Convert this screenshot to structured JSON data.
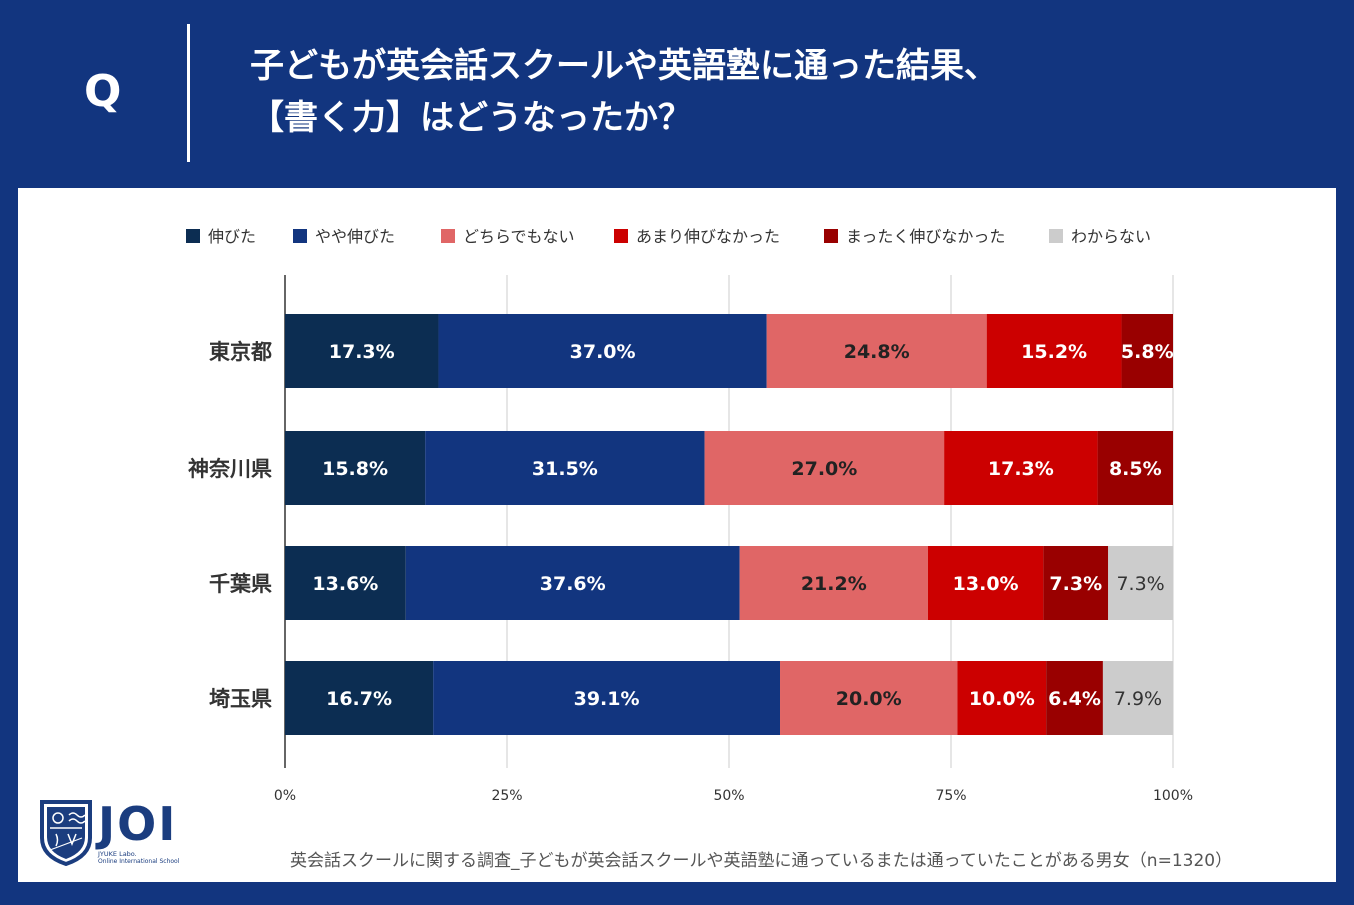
{
  "header": {
    "q_label": "Q",
    "question": "子どもが英会話スクールや英語塾に通った結果、\n【書く力】はどうなったか？"
  },
  "colors": {
    "background": "#12357f",
    "series": [
      "#0c2d52",
      "#12357f",
      "#e06666",
      "#cc0000",
      "#990000",
      "#cccccc"
    ]
  },
  "chart_data": {
    "type": "bar",
    "orientation": "horizontal-stacked-100",
    "categories": [
      "東京都",
      "神奈川県",
      "千葉県",
      "埼玉県"
    ],
    "series": [
      {
        "name": "伸びた",
        "values": [
          17.3,
          15.8,
          13.6,
          16.7
        ],
        "labels": [
          "17.3%",
          "15.8%",
          "13.6%",
          "16.7%"
        ]
      },
      {
        "name": "やや伸びた",
        "values": [
          37.0,
          31.5,
          37.6,
          39.1
        ],
        "labels": [
          "37.0%",
          "31.5%",
          "37.6%",
          "39.1%"
        ]
      },
      {
        "name": "どちらでもない",
        "values": [
          24.8,
          27.0,
          21.2,
          20.0
        ],
        "labels": [
          "24.8%",
          "27.0%",
          "21.2%",
          "20.0%"
        ]
      },
      {
        "name": "あまり伸びなかった",
        "values": [
          15.2,
          17.3,
          13.0,
          10.0
        ],
        "labels": [
          "15.2%",
          "17.3%",
          "13.0%",
          "10.0%"
        ]
      },
      {
        "name": "まったく伸びなかった",
        "values": [
          5.8,
          8.5,
          7.3,
          6.4
        ],
        "labels": [
          "5.8%",
          "8.5%",
          "7.3%",
          "6.4%"
        ]
      },
      {
        "name": "わからない",
        "values": [
          0,
          0,
          7.3,
          7.9
        ],
        "labels": [
          "",
          "",
          "7.3%",
          "7.9%"
        ]
      }
    ],
    "xlim": [
      0,
      100
    ],
    "xticks": [
      "0%",
      "25%",
      "50%",
      "75%",
      "100%"
    ],
    "legend_position": "top",
    "grid": true
  },
  "logo": {
    "name": "JOI",
    "sub1": "JYUKE Labo.",
    "sub2": "Online International School"
  },
  "footer": {
    "note": "英会話スクールに関する調査_子どもが英会話スクールや英語塾に通っているまたは通っていたことがある男女（n=1320）"
  }
}
